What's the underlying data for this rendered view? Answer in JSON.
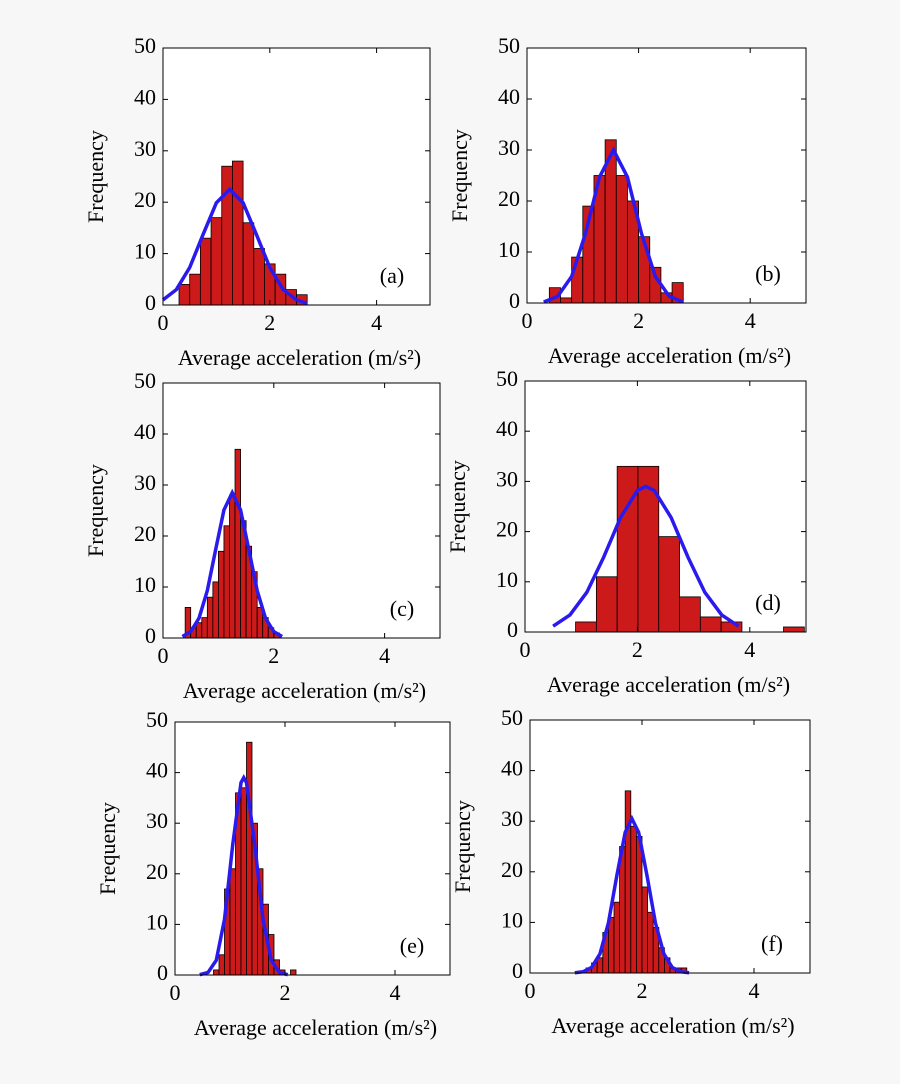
{
  "chart_data": [
    {
      "type": "histogram",
      "annotation": "(a)",
      "xlabel": "Average acceleration (m/s²)",
      "ylabel": "Frequency",
      "xlim": [
        0,
        5
      ],
      "ylim": [
        0,
        50
      ],
      "xticks": [
        0,
        2,
        4
      ],
      "yticks": [
        0,
        10,
        20,
        30,
        40,
        50
      ],
      "color": "#cc1a1a",
      "bins": [
        0.3,
        0.5,
        0.7,
        0.9,
        1.1,
        1.3,
        1.5,
        1.7,
        1.9,
        2.1,
        2.3,
        2.5,
        2.7
      ],
      "counts": [
        4,
        6,
        13,
        17,
        27,
        28,
        16,
        11,
        8,
        6,
        3,
        2
      ],
      "line": {
        "color": "#2a1aee",
        "x": [
          0,
          0.25,
          0.5,
          0.75,
          1.0,
          1.25,
          1.5,
          1.75,
          2.0,
          2.25,
          2.5,
          2.7
        ],
        "values": [
          1.0,
          3.0,
          7.3,
          13.7,
          19.9,
          22.5,
          19.9,
          13.7,
          7.3,
          3.0,
          1.0,
          0.3
        ]
      }
    },
    {
      "type": "histogram",
      "annotation": "(b)",
      "xlabel": "Average acceleration (m/s²)",
      "ylabel": "Frequency",
      "xlim": [
        0,
        5
      ],
      "ylim": [
        0,
        50
      ],
      "xticks": [
        0,
        2,
        4
      ],
      "yticks": [
        0,
        10,
        20,
        30,
        40,
        50
      ],
      "color": "#cc1a1a",
      "bins": [
        0.4,
        0.6,
        0.8,
        1.0,
        1.2,
        1.4,
        1.6,
        1.8,
        2.0,
        2.2,
        2.4,
        2.6,
        2.8
      ],
      "counts": [
        3,
        1,
        9,
        19,
        25,
        32,
        25,
        20,
        13,
        7,
        2,
        4
      ],
      "line": {
        "color": "#2a1aee",
        "x": [
          0.3,
          0.55,
          0.8,
          1.05,
          1.3,
          1.55,
          1.8,
          2.05,
          2.3,
          2.55,
          2.8
        ],
        "values": [
          0.2,
          1.3,
          5.2,
          13.7,
          24.7,
          30,
          24.7,
          13.7,
          5.2,
          1.3,
          0.2
        ]
      }
    },
    {
      "type": "histogram",
      "annotation": "(c)",
      "xlabel": "Average acceleration (m/s²)",
      "ylabel": "Frequency",
      "xlim": [
        0,
        5
      ],
      "ylim": [
        0,
        50
      ],
      "xticks": [
        0,
        2,
        4
      ],
      "yticks": [
        0,
        10,
        20,
        30,
        40,
        50
      ],
      "color": "#cc1a1a",
      "bins": [
        0.4,
        0.5,
        0.6,
        0.7,
        0.8,
        0.9,
        1.0,
        1.1,
        1.2,
        1.3,
        1.4,
        1.5,
        1.6,
        1.7,
        1.8,
        1.9,
        2.0,
        2.1,
        2.2
      ],
      "counts": [
        6,
        2,
        3,
        4,
        8,
        11,
        17,
        22,
        28,
        37,
        23,
        18,
        13,
        6,
        4,
        2,
        1,
        0
      ],
      "line": {
        "color": "#2a1aee",
        "x": [
          0.35,
          0.5,
          0.65,
          0.8,
          0.95,
          1.1,
          1.25,
          1.4,
          1.55,
          1.7,
          1.85,
          2.0,
          2.15
        ],
        "values": [
          0.3,
          1.25,
          3.9,
          9.3,
          17.3,
          25.1,
          28.5,
          25.1,
          17.3,
          9.3,
          3.9,
          1.25,
          0.3
        ]
      }
    },
    {
      "type": "histogram",
      "annotation": "(d)",
      "xlabel": "Average acceleration (m/s²)",
      "ylabel": "Frequency",
      "xlim": [
        0,
        5
      ],
      "ylim": [
        0,
        50
      ],
      "xticks": [
        0,
        2,
        4
      ],
      "yticks": [
        0,
        10,
        20,
        30,
        40,
        50
      ],
      "color": "#cc1a1a",
      "bins": [
        0.9,
        1.27,
        1.64,
        2.01,
        2.38,
        2.75,
        3.12,
        3.49,
        3.86,
        4.23,
        4.6,
        4.97
      ],
      "counts": [
        2,
        11,
        33,
        33,
        19,
        7,
        3,
        2,
        0,
        0,
        1
      ],
      "line": {
        "color": "#2a1aee",
        "x": [
          0.5,
          0.8,
          1.1,
          1.4,
          1.7,
          2.0,
          2.15,
          2.3,
          2.6,
          2.9,
          3.2,
          3.5,
          3.8
        ],
        "values": [
          1.16,
          3.4,
          7.9,
          14.9,
          22.8,
          28.2,
          29,
          28.2,
          22.8,
          14.9,
          7.9,
          3.4,
          1.16
        ]
      }
    },
    {
      "type": "histogram",
      "annotation": "(e)",
      "xlabel": "Average acceleration (m/s²)",
      "ylabel": "Frequency",
      "xlim": [
        0,
        5
      ],
      "ylim": [
        0,
        50
      ],
      "xticks": [
        0,
        2,
        4
      ],
      "yticks": [
        0,
        10,
        20,
        30,
        40,
        50
      ],
      "color": "#cc1a1a",
      "bins": [
        0.7,
        0.8,
        0.9,
        1.0,
        1.1,
        1.2,
        1.3,
        1.4,
        1.5,
        1.6,
        1.7,
        1.8,
        1.9,
        2.0,
        2.1,
        2.2
      ],
      "counts": [
        1,
        4,
        17,
        21,
        36,
        37,
        46,
        30,
        21,
        14,
        8,
        3,
        1,
        0,
        1
      ],
      "line": {
        "color": "#2a1aee",
        "x": [
          0.45,
          0.6,
          0.75,
          0.9,
          1.05,
          1.2,
          1.25,
          1.3,
          1.45,
          1.6,
          1.75,
          1.9,
          2.05
        ],
        "values": [
          0.05,
          0.5,
          2.9,
          11,
          25.8,
          38,
          39,
          38,
          25.8,
          11,
          2.9,
          0.5,
          0.05
        ]
      }
    },
    {
      "type": "histogram",
      "annotation": "(f)",
      "xlabel": "Average acceleration (m/s²)",
      "ylabel": "Frequency",
      "xlim": [
        0,
        5
      ],
      "ylim": [
        0,
        50
      ],
      "xticks": [
        0,
        2,
        4
      ],
      "yticks": [
        0,
        10,
        20,
        30,
        40,
        50
      ],
      "color": "#cc1a1a",
      "bins": [
        1.0,
        1.1,
        1.2,
        1.3,
        1.4,
        1.5,
        1.6,
        1.7,
        1.8,
        1.9,
        2.0,
        2.1,
        2.2,
        2.3,
        2.4,
        2.5,
        2.6,
        2.7,
        2.8
      ],
      "counts": [
        1,
        2,
        3,
        8,
        11,
        14,
        25,
        36,
        29,
        27,
        17,
        12,
        9,
        5,
        3,
        1,
        1,
        1
      ],
      "line": {
        "color": "#2a1aee",
        "x": [
          0.8,
          0.95,
          1.1,
          1.25,
          1.4,
          1.55,
          1.7,
          1.82,
          1.94,
          2.09,
          2.24,
          2.39,
          2.54,
          2.69,
          2.84
        ],
        "values": [
          0.04,
          0.25,
          1.1,
          3.8,
          9.9,
          19.2,
          27.8,
          30.5,
          27.8,
          19.2,
          9.9,
          3.8,
          1.1,
          0.25,
          0.04
        ]
      }
    }
  ]
}
